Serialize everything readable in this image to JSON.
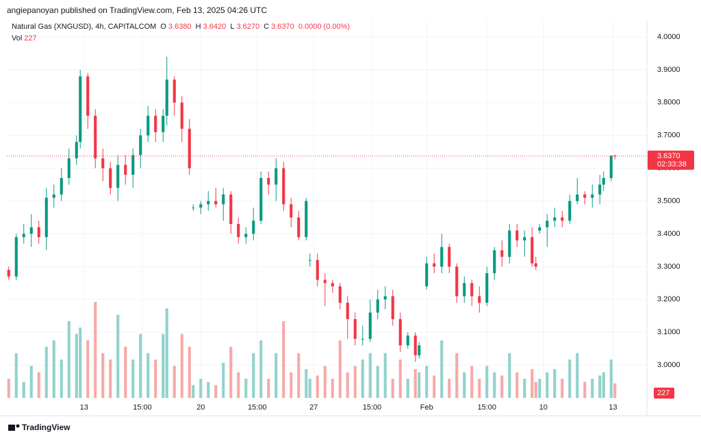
{
  "header": {
    "byline": "angiepanoyan published on TradingView.com, Feb 13, 2025 04:26 UTC"
  },
  "legend": {
    "name": "Natural Gas (XNGUSD), 4h, CAPITALCOM",
    "items": [
      {
        "key": "O",
        "value": "3.6380"
      },
      {
        "key": "H",
        "value": "3.6420"
      },
      {
        "key": "L",
        "value": "3.6270"
      },
      {
        "key": "C",
        "value": "3.6370"
      }
    ],
    "change": "0.0000 (0.00%)",
    "vol_key": "Vol",
    "vol": "227",
    "last_price": "3.6370",
    "countdown": "02:33:38"
  },
  "footer": {
    "brand": "TradingView"
  },
  "chart_data": {
    "type": "candlestick",
    "x": [
      0,
      2,
      4,
      6,
      8,
      10,
      12,
      14,
      16,
      18,
      19,
      21,
      23,
      25,
      27,
      29,
      31,
      33,
      35,
      37,
      39,
      41,
      42,
      44,
      46,
      48,
      49,
      51,
      53,
      55,
      57,
      59,
      61,
      63,
      65,
      67,
      69,
      71,
      73,
      75,
      77,
      79,
      80,
      82,
      84,
      86,
      88,
      90,
      92,
      94,
      96,
      98,
      100,
      102,
      104,
      106,
      108,
      109,
      111,
      113,
      115,
      117,
      119,
      121,
      123,
      125,
      127,
      129,
      131,
      133,
      135,
      137,
      139,
      140,
      141,
      143,
      145,
      147,
      149,
      151,
      153,
      155,
      157,
      158,
      160,
      161
    ],
    "open": [
      3.29,
      3.27,
      3.39,
      3.4,
      3.42,
      3.39,
      3.51,
      3.52,
      3.57,
      3.63,
      3.68,
      3.88,
      3.76,
      3.63,
      3.6,
      3.54,
      3.61,
      3.58,
      3.64,
      3.7,
      3.76,
      3.71,
      3.76,
      3.87,
      3.8,
      3.72,
      3.48,
      3.48,
      3.49,
      3.5,
      3.49,
      3.52,
      3.43,
      3.39,
      3.4,
      3.44,
      3.57,
      3.55,
      3.6,
      3.49,
      3.45,
      3.39,
      3.32,
      3.32,
      3.26,
      3.25,
      3.24,
      3.19,
      3.14,
      3.08,
      3.08,
      3.16,
      3.2,
      3.21,
      3.14,
      3.06,
      3.09,
      3.03,
      3.24,
      3.31,
      3.3,
      3.36,
      3.3,
      3.21,
      3.25,
      3.21,
      3.19,
      3.28,
      3.35,
      3.33,
      3.41,
      3.38,
      3.39,
      3.31,
      3.41,
      3.42,
      3.44,
      3.45,
      3.44,
      3.5,
      3.52,
      3.51,
      3.52,
      3.55,
      3.57,
      3.638
    ],
    "high": [
      3.3,
      3.4,
      3.43,
      3.46,
      3.44,
      3.54,
      3.55,
      3.6,
      3.66,
      3.7,
      3.9,
      3.89,
      3.78,
      3.66,
      3.62,
      3.64,
      3.64,
      3.66,
      3.72,
      3.79,
      3.78,
      3.78,
      3.94,
      3.88,
      3.82,
      3.75,
      3.49,
      3.5,
      3.53,
      3.54,
      3.54,
      3.53,
      3.45,
      3.42,
      3.48,
      3.59,
      3.59,
      3.63,
      3.62,
      3.51,
      3.47,
      3.51,
      3.34,
      3.34,
      3.28,
      3.26,
      3.25,
      3.21,
      3.16,
      3.12,
      3.2,
      3.23,
      3.24,
      3.23,
      3.16,
      3.1,
      3.1,
      3.07,
      3.33,
      3.34,
      3.4,
      3.37,
      3.31,
      3.27,
      3.26,
      3.24,
      3.3,
      3.36,
      3.38,
      3.43,
      3.43,
      3.41,
      3.42,
      3.33,
      3.43,
      3.46,
      3.48,
      3.47,
      3.52,
      3.57,
      3.53,
      3.55,
      3.58,
      3.59,
      3.64,
      3.642
    ],
    "low": [
      3.26,
      3.26,
      3.37,
      3.36,
      3.37,
      3.35,
      3.48,
      3.5,
      3.55,
      3.61,
      3.66,
      3.72,
      3.6,
      3.56,
      3.52,
      3.5,
      3.55,
      3.54,
      3.6,
      3.68,
      3.68,
      3.68,
      3.73,
      3.76,
      3.68,
      3.58,
      3.47,
      3.46,
      3.47,
      3.48,
      3.44,
      3.4,
      3.37,
      3.37,
      3.38,
      3.43,
      3.52,
      3.5,
      3.47,
      3.42,
      3.38,
      3.38,
      3.3,
      3.24,
      3.18,
      3.22,
      3.17,
      3.08,
      3.06,
      3.06,
      3.07,
      3.14,
      3.17,
      3.12,
      3.04,
      3.05,
      3.01,
      3.02,
      3.23,
      3.28,
      3.28,
      3.28,
      3.19,
      3.19,
      3.18,
      3.16,
      3.18,
      3.26,
      3.3,
      3.31,
      3.36,
      3.33,
      3.3,
      3.29,
      3.4,
      3.36,
      3.42,
      3.42,
      3.43,
      3.49,
      3.49,
      3.48,
      3.49,
      3.53,
      3.56,
      3.627
    ],
    "close": [
      3.27,
      3.39,
      3.4,
      3.42,
      3.39,
      3.51,
      3.52,
      3.57,
      3.63,
      3.68,
      3.88,
      3.76,
      3.63,
      3.6,
      3.54,
      3.61,
      3.58,
      3.64,
      3.7,
      3.76,
      3.71,
      3.76,
      3.87,
      3.8,
      3.72,
      3.6,
      3.48,
      3.49,
      3.5,
      3.49,
      3.52,
      3.43,
      3.39,
      3.4,
      3.44,
      3.57,
      3.55,
      3.6,
      3.49,
      3.45,
      3.39,
      3.5,
      3.32,
      3.26,
      3.25,
      3.24,
      3.19,
      3.14,
      3.08,
      3.08,
      3.16,
      3.2,
      3.21,
      3.14,
      3.06,
      3.09,
      3.03,
      3.06,
      3.31,
      3.3,
      3.36,
      3.3,
      3.21,
      3.25,
      3.21,
      3.19,
      3.28,
      3.35,
      3.33,
      3.41,
      3.38,
      3.39,
      3.31,
      3.3,
      3.42,
      3.44,
      3.45,
      3.44,
      3.5,
      3.52,
      3.51,
      3.52,
      3.55,
      3.57,
      3.638,
      3.637
    ],
    "volume": [
      300,
      700,
      250,
      500,
      400,
      800,
      900,
      600,
      1200,
      1000,
      1100,
      900,
      1500,
      700,
      600,
      1300,
      800,
      600,
      1000,
      700,
      600,
      1000,
      1400,
      500,
      1000,
      800,
      200,
      300,
      250,
      200,
      550,
      800,
      400,
      300,
      700,
      900,
      300,
      700,
      1200,
      400,
      700,
      450,
      300,
      350,
      500,
      300,
      900,
      400,
      500,
      600,
      700,
      500,
      700,
      300,
      600,
      300,
      450,
      400,
      500,
      350,
      900,
      300,
      700,
      400,
      500,
      300,
      500,
      400,
      350,
      700,
      400,
      300,
      450,
      250,
      300,
      400,
      450,
      300,
      600,
      700,
      250,
      300,
      350,
      400,
      600,
      227
    ],
    "xlim": [
      -0.5,
      169.5
    ],
    "xticks": [
      {
        "value": 20,
        "label": "13"
      },
      {
        "value": 35.5,
        "label": "15:00"
      },
      {
        "value": 51,
        "label": "20"
      },
      {
        "value": 66,
        "label": "15:00"
      },
      {
        "value": 81,
        "label": "27"
      },
      {
        "value": 96.5,
        "label": "15:00"
      },
      {
        "value": 111,
        "label": "Feb"
      },
      {
        "value": 127,
        "label": "15:00"
      },
      {
        "value": 142,
        "label": "10"
      },
      {
        "value": 160.5,
        "label": "13"
      }
    ],
    "ylim": [
      2.9,
      4.05
    ],
    "yticks": [
      {
        "value": 3.0,
        "label": "3.0000"
      },
      {
        "value": 3.1,
        "label": "3.1000"
      },
      {
        "value": 3.2,
        "label": "3.2000"
      },
      {
        "value": 3.3,
        "label": "3.3000"
      },
      {
        "value": 3.4,
        "label": "3.4000"
      },
      {
        "value": 3.5,
        "label": "3.5000"
      },
      {
        "value": 3.6,
        "label": "3.6000"
      },
      {
        "value": 3.7,
        "label": "3.7000"
      },
      {
        "value": 3.8,
        "label": "3.8000"
      },
      {
        "value": 3.9,
        "label": "3.9000"
      },
      {
        "value": 4.0,
        "label": "4.0000"
      }
    ],
    "y2lim": [
      0,
      5900
    ],
    "grid": true,
    "up_color": "#089981",
    "down_color": "#f23645",
    "up_volume_color": "#92d2cc",
    "down_volume_color": "#f7a9a7"
  }
}
